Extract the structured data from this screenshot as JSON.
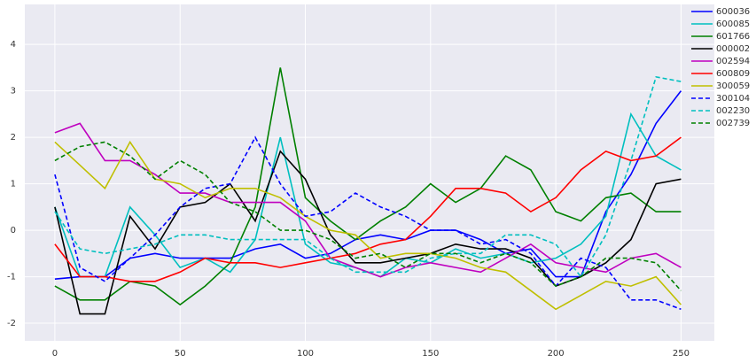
{
  "chart_data": {
    "type": "line",
    "x": [
      0,
      10,
      20,
      30,
      40,
      50,
      60,
      70,
      80,
      90,
      100,
      110,
      120,
      130,
      140,
      150,
      160,
      170,
      180,
      190,
      200,
      210,
      220,
      230,
      240,
      250
    ],
    "series": [
      {
        "name": "600036",
        "color": "#0000ff",
        "linestyle": "solid",
        "values": [
          -1.05,
          -1.0,
          -1.0,
          -0.6,
          -0.5,
          -0.6,
          -0.6,
          -0.6,
          -0.4,
          -0.3,
          -0.6,
          -0.5,
          -0.2,
          -0.1,
          -0.2,
          0.0,
          0.0,
          -0.2,
          -0.5,
          -0.4,
          -1.0,
          -1.0,
          0.4,
          1.2,
          2.3,
          3.0
        ]
      },
      {
        "name": "600085",
        "color": "#00bfbf",
        "linestyle": "solid",
        "values": [
          0.5,
          -1.0,
          -1.0,
          0.5,
          -0.1,
          -0.8,
          -0.6,
          -0.9,
          -0.2,
          2.0,
          -0.3,
          -0.7,
          -0.8,
          -1.0,
          -0.6,
          -0.7,
          -0.4,
          -0.6,
          -0.5,
          -0.7,
          -0.6,
          -0.3,
          0.3,
          2.5,
          1.6,
          1.3
        ]
      },
      {
        "name": "601766",
        "color": "#008000",
        "linestyle": "solid",
        "values": [
          -1.2,
          -1.5,
          -1.5,
          -1.1,
          -1.2,
          -1.6,
          -1.2,
          -0.7,
          0.5,
          3.5,
          0.7,
          0.2,
          -0.2,
          0.2,
          0.5,
          1.0,
          0.6,
          0.9,
          1.6,
          1.3,
          0.4,
          0.2,
          0.7,
          0.8,
          0.4,
          0.4
        ]
      },
      {
        "name": "000002",
        "color": "#000000",
        "linestyle": "solid",
        "values": [
          0.5,
          -1.8,
          -1.8,
          0.3,
          -0.4,
          0.5,
          0.6,
          1.0,
          0.2,
          1.7,
          1.1,
          -0.1,
          -0.7,
          -0.7,
          -0.6,
          -0.5,
          -0.3,
          -0.4,
          -0.4,
          -0.6,
          -1.2,
          -1.0,
          -0.7,
          -0.2,
          1.0,
          1.1
        ]
      },
      {
        "name": "002594",
        "color": "#bf00bf",
        "linestyle": "solid",
        "values": [
          2.1,
          2.3,
          1.5,
          1.5,
          1.2,
          0.8,
          0.8,
          0.6,
          0.6,
          0.6,
          0.2,
          -0.6,
          -0.8,
          -1.0,
          -0.8,
          -0.7,
          -0.8,
          -0.9,
          -0.6,
          -0.3,
          -0.7,
          -0.8,
          -0.9,
          -0.6,
          -0.5,
          -0.8
        ]
      },
      {
        "name": "600809",
        "color": "#ff0000",
        "linestyle": "solid",
        "values": [
          -0.3,
          -1.0,
          -1.0,
          -1.1,
          -1.1,
          -0.9,
          -0.6,
          -0.7,
          -0.7,
          -0.8,
          -0.7,
          -0.6,
          -0.5,
          -0.3,
          -0.2,
          0.3,
          0.9,
          0.9,
          0.8,
          0.4,
          0.7,
          1.3,
          1.7,
          1.5,
          1.6,
          2.0
        ]
      },
      {
        "name": "300059",
        "color": "#bfbf00",
        "linestyle": "solid",
        "values": [
          1.9,
          1.4,
          0.9,
          1.9,
          1.1,
          1.0,
          0.7,
          0.9,
          0.9,
          0.7,
          0.3,
          0.0,
          -0.1,
          -0.6,
          -0.5,
          -0.5,
          -0.6,
          -0.8,
          -0.9,
          -1.3,
          -1.7,
          -1.4,
          -1.1,
          -1.2,
          -1.0,
          -1.6
        ]
      },
      {
        "name": "300104",
        "color": "#0000ff",
        "linestyle": "dashed",
        "values": [
          1.2,
          -0.8,
          -1.1,
          -0.6,
          -0.1,
          0.5,
          0.9,
          1.0,
          2.0,
          1.0,
          0.3,
          0.4,
          0.8,
          0.5,
          0.3,
          0.0,
          0.0,
          -0.3,
          -0.2,
          -0.5,
          -1.2,
          -0.6,
          -0.8,
          -1.5,
          -1.5,
          -1.7
        ]
      },
      {
        "name": "002230",
        "color": "#00bfbf",
        "linestyle": "dashed",
        "values": [
          0.4,
          -0.4,
          -0.5,
          -0.4,
          -0.3,
          -0.1,
          -0.1,
          -0.2,
          -0.2,
          -0.2,
          -0.2,
          -0.6,
          -0.9,
          -0.9,
          -0.9,
          -0.6,
          -0.5,
          -0.5,
          -0.1,
          -0.1,
          -0.3,
          -1.0,
          -0.1,
          1.5,
          3.3,
          3.2
        ]
      },
      {
        "name": "002739",
        "color": "#008000",
        "linestyle": "dashed",
        "values": [
          1.5,
          1.8,
          1.9,
          1.6,
          1.1,
          1.5,
          1.2,
          0.6,
          0.4,
          0.0,
          0.0,
          -0.2,
          -0.6,
          -0.5,
          -0.8,
          -0.5,
          -0.5,
          -0.7,
          -0.5,
          -0.7,
          -1.2,
          -1.0,
          -0.6,
          -0.6,
          -0.7,
          -1.3
        ]
      }
    ],
    "xlim": [
      -12,
      263.3
    ],
    "ylim": [
      -2.38,
      4.86
    ],
    "xticks": [
      0,
      50,
      100,
      150,
      200,
      250
    ],
    "yticks": [
      -2,
      -1,
      0,
      1,
      2,
      3,
      4
    ],
    "grid": true,
    "legend": "upper right"
  }
}
